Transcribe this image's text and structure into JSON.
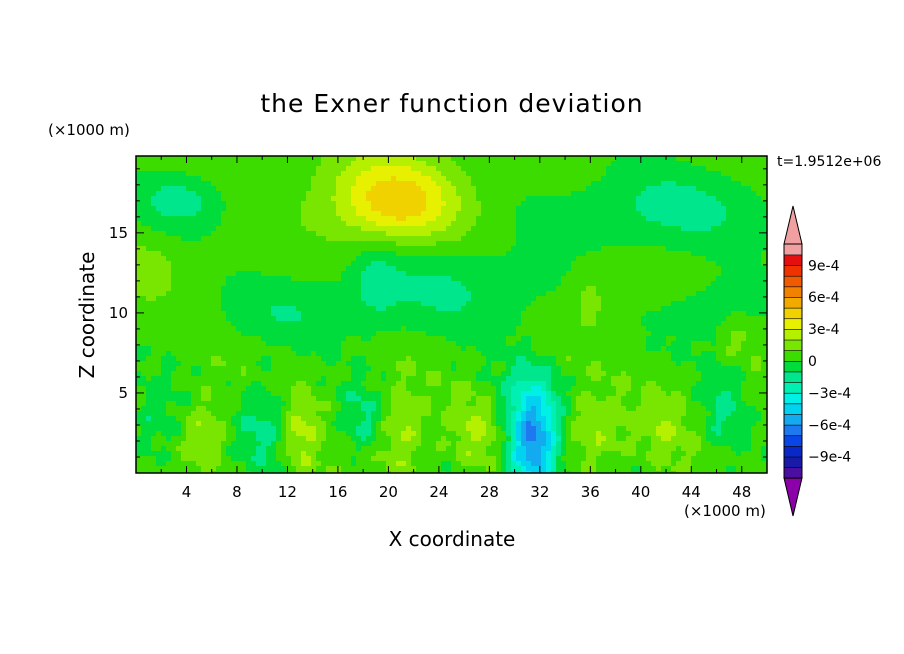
{
  "chart_data": {
    "type": "heatmap",
    "title": "the Exner function deviation",
    "xlabel": "X coordinate",
    "ylabel": "Z coordinate",
    "x_unit": "(×1000 m)",
    "y_unit": "(×1000 m)",
    "time_label": "t=1.9512e+06",
    "xlim": [
      0,
      50
    ],
    "ylim": [
      0,
      19.8
    ],
    "x_ticks": [
      4,
      8,
      12,
      16,
      20,
      24,
      28,
      32,
      36,
      40,
      44,
      48
    ],
    "y_ticks": [
      5,
      10,
      15
    ],
    "colorbar": {
      "levels": [
        -0.0011,
        -0.001,
        -0.0009,
        -0.0008,
        -0.0007,
        -0.0006,
        -0.0005,
        -0.0004,
        -0.0003,
        -0.0002,
        -0.0001,
        0,
        0.0001,
        0.0002,
        0.0003,
        0.0004,
        0.0005,
        0.0006,
        0.0007,
        0.0008,
        0.0009,
        0.001,
        0.0011
      ],
      "labels": [
        "9e-4",
        "6e-4",
        "3e-4",
        "0",
        "−3e-4",
        "−6e-4",
        "−9e-4"
      ],
      "label_values": [
        0.0009,
        0.0006,
        0.0003,
        0,
        -0.0003,
        -0.0006,
        -0.0009
      ],
      "colors": [
        "#8b00a8",
        "#4a0fa0",
        "#1a1aa8",
        "#0a28c8",
        "#0a46e6",
        "#1e78f0",
        "#14aaf0",
        "#00d2f0",
        "#00f0e6",
        "#00f0b4",
        "#00e68c",
        "#00dc3c",
        "#3cdc00",
        "#78e600",
        "#b4f000",
        "#e6f000",
        "#f0d200",
        "#f0aa00",
        "#f08200",
        "#f05a00",
        "#f03200",
        "#e60f0f",
        "#f0a0a0"
      ]
    },
    "field_base": 5e-05,
    "features": [
      {
        "x": 31.5,
        "z": 1.8,
        "sx": 1.4,
        "sz": 2.3,
        "amp": -0.00068
      },
      {
        "x": 31.0,
        "z": 5.0,
        "sx": 2.0,
        "sz": 1.6,
        "amp": -0.00012
      },
      {
        "x": 10.0,
        "z": 3.0,
        "sx": 1.5,
        "sz": 2.0,
        "amp": -0.00018
      },
      {
        "x": 18.0,
        "z": 3.5,
        "sx": 1.2,
        "sz": 1.6,
        "amp": -0.00016
      },
      {
        "x": 46.5,
        "z": 4.0,
        "sx": 1.2,
        "sz": 2.0,
        "amp": -0.00015
      },
      {
        "x": 1.5,
        "z": 3.0,
        "sx": 1.5,
        "sz": 2.0,
        "amp": -0.00012
      },
      {
        "x": 5.5,
        "z": 2.5,
        "sx": 1.3,
        "sz": 1.5,
        "amp": 0.00017
      },
      {
        "x": 13.0,
        "z": 2.5,
        "sx": 1.0,
        "sz": 2.0,
        "amp": 0.00018
      },
      {
        "x": 21.0,
        "z": 2.5,
        "sx": 1.2,
        "sz": 2.0,
        "amp": 0.00018
      },
      {
        "x": 27.0,
        "z": 2.5,
        "sx": 1.5,
        "sz": 1.6,
        "amp": 0.00015
      },
      {
        "x": 36.0,
        "z": 2.5,
        "sx": 2.0,
        "sz": 1.6,
        "amp": 0.00015
      },
      {
        "x": 42.0,
        "z": 3.0,
        "sx": 1.5,
        "sz": 1.6,
        "amp": 0.00012
      },
      {
        "x": 20.5,
        "z": 16.5,
        "sx": 3.5,
        "sz": 1.6,
        "amp": 0.00035
      },
      {
        "x": 20.0,
        "z": 18.5,
        "sx": 4.0,
        "sz": 1.6,
        "amp": 0.00015
      },
      {
        "x": 3.5,
        "z": 17.0,
        "sx": 2.5,
        "sz": 1.2,
        "amp": -0.00018
      },
      {
        "x": 42.0,
        "z": 16.5,
        "sx": 6.0,
        "sz": 1.8,
        "amp": -0.00018
      },
      {
        "x": 25.0,
        "z": 11.5,
        "sx": 6.0,
        "sz": 2.0,
        "amp": -0.00015
      },
      {
        "x": 19.0,
        "z": 12.0,
        "sx": 1.3,
        "sz": 1.8,
        "amp": -0.00012
      },
      {
        "x": 46.0,
        "z": 10.0,
        "sx": 3.0,
        "sz": 1.6,
        "amp": -0.00012
      },
      {
        "x": 12.0,
        "z": 10.0,
        "sx": 4.0,
        "sz": 1.5,
        "amp": -0.00012
      },
      {
        "x": 1.0,
        "z": 12.5,
        "sx": 1.2,
        "sz": 1.0,
        "amp": 0.00012
      },
      {
        "x": 36.0,
        "z": 11.0,
        "sx": 1.2,
        "sz": 1.5,
        "amp": 0.00012
      },
      {
        "x": 47.5,
        "z": 8.5,
        "sx": 0.9,
        "sz": 1.0,
        "amp": 0.00012
      }
    ]
  }
}
